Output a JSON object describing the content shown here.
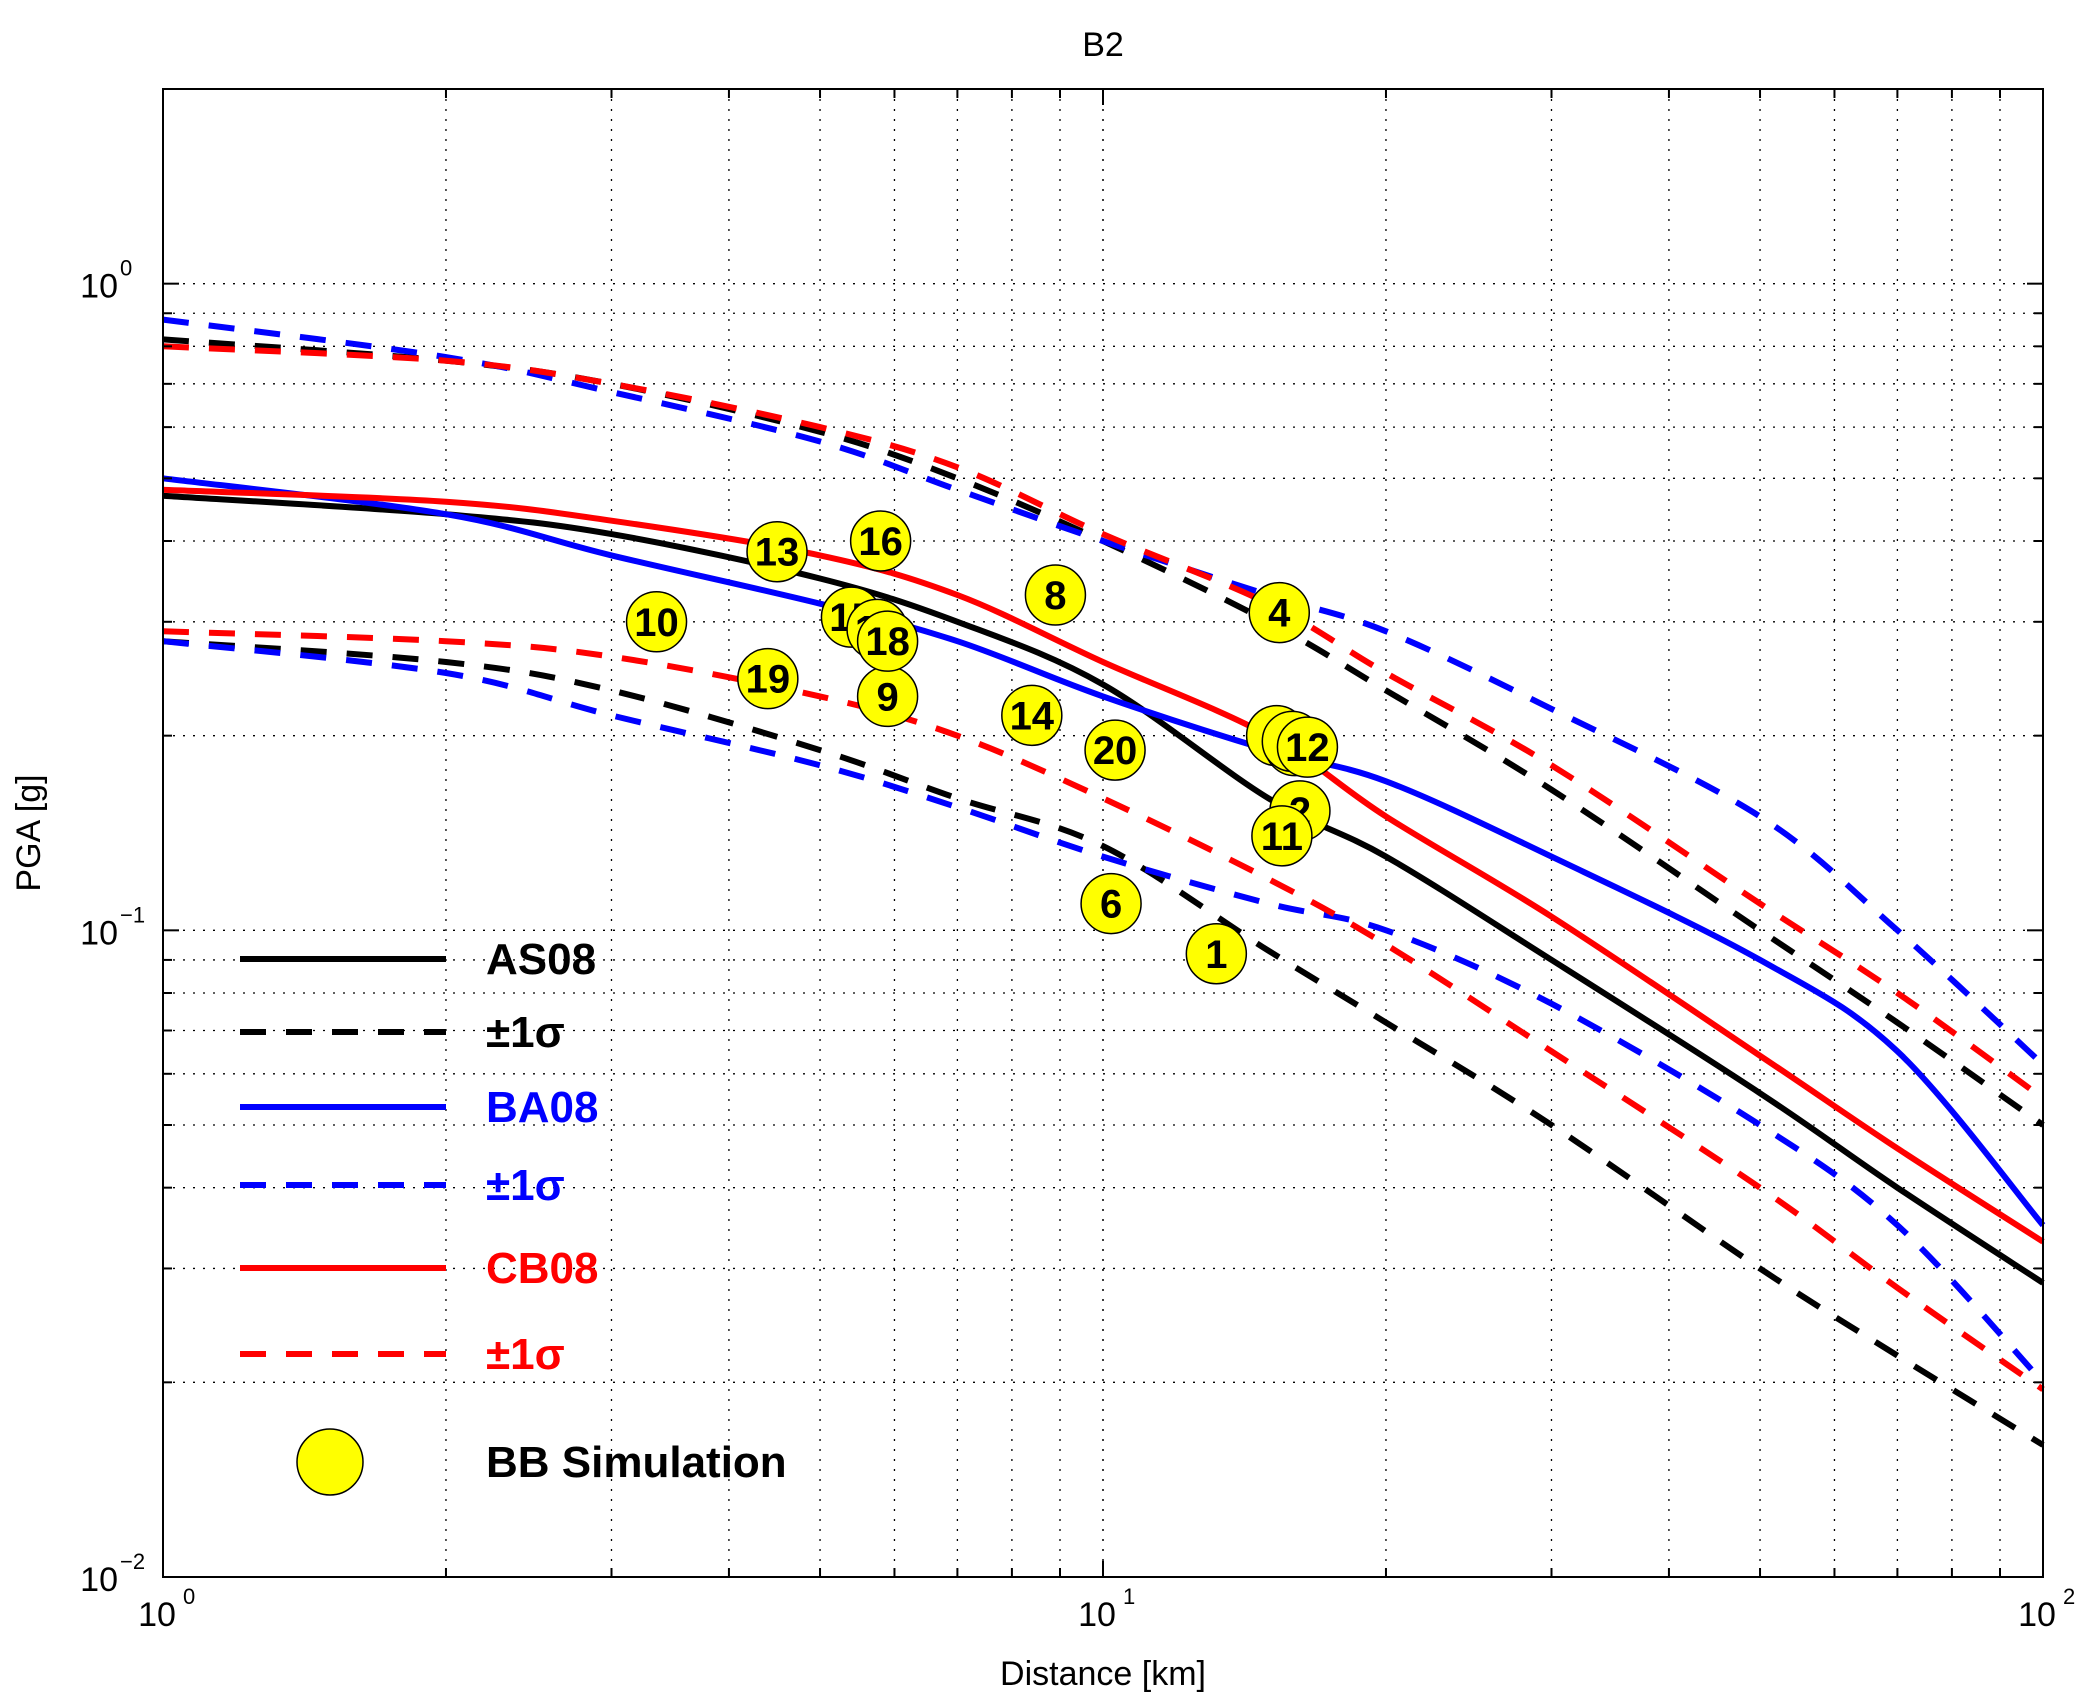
{
  "chart_data": {
    "type": "scatter",
    "title": "B2",
    "xlabel": "Distance [km]",
    "ylabel": "PGA [g]",
    "xscale": "log",
    "yscale": "log",
    "xlim": [
      1,
      100
    ],
    "ylim": [
      0.01,
      2.0
    ],
    "grid": true,
    "x_ticks": [
      {
        "base": "10",
        "exp": "0",
        "value": 1
      },
      {
        "base": "10",
        "exp": "1",
        "value": 10
      },
      {
        "base": "10",
        "exp": "2",
        "value": 100
      }
    ],
    "y_ticks": [
      {
        "base": "10",
        "exp": "−2",
        "value": 0.01
      },
      {
        "base": "10",
        "exp": "−1",
        "value": 0.1
      },
      {
        "base": "10",
        "exp": "0",
        "value": 1
      }
    ],
    "legend_placement": "bottom-left",
    "legend": [
      {
        "label": "AS08",
        "color": "#000000",
        "style": "solid"
      },
      {
        "label": "±1σ",
        "color": "#000000",
        "style": "dashed"
      },
      {
        "label": "BA08",
        "color": "#0000ff",
        "style": "solid"
      },
      {
        "label": "±1σ",
        "color": "#0000ff",
        "style": "dashed"
      },
      {
        "label": "CB08",
        "color": "#ff0000",
        "style": "solid"
      },
      {
        "label": "±1σ",
        "color": "#ff0000",
        "style": "dashed"
      },
      {
        "label": "BB Simulation",
        "color": "#ffff00",
        "style": "marker"
      }
    ],
    "curves": [
      {
        "id": "as08-upper",
        "color": "#000000",
        "style": "dashed",
        "x": [
          1,
          2,
          3,
          5,
          7,
          10,
          15,
          20,
          30,
          50,
          70,
          100
        ],
        "y": [
          0.82,
          0.76,
          0.7,
          0.59,
          0.5,
          0.4,
          0.3,
          0.235,
          0.165,
          0.1,
          0.072,
          0.05
        ]
      },
      {
        "id": "as08-median",
        "color": "#000000",
        "style": "solid",
        "x": [
          1,
          2,
          3,
          5,
          7,
          10,
          15,
          20,
          30,
          50,
          70,
          100
        ],
        "y": [
          0.47,
          0.44,
          0.41,
          0.35,
          0.3,
          0.24,
          0.16,
          0.13,
          0.09,
          0.056,
          0.04,
          0.0285
        ]
      },
      {
        "id": "as08-lower",
        "color": "#000000",
        "style": "dashed",
        "x": [
          1,
          2,
          3,
          5,
          7,
          10,
          15,
          20,
          30,
          50,
          70,
          100
        ],
        "y": [
          0.28,
          0.26,
          0.235,
          0.19,
          0.16,
          0.135,
          0.093,
          0.072,
          0.05,
          0.03,
          0.022,
          0.016
        ]
      },
      {
        "id": "ba08-upper",
        "color": "#0000ff",
        "style": "dashed",
        "x": [
          1,
          2,
          3,
          5,
          7,
          10,
          15,
          20,
          30,
          50,
          70,
          100
        ],
        "y": [
          0.88,
          0.77,
          0.68,
          0.57,
          0.48,
          0.4,
          0.33,
          0.29,
          0.22,
          0.15,
          0.1,
          0.062
        ]
      },
      {
        "id": "ba08-median",
        "color": "#0000ff",
        "style": "solid",
        "x": [
          1,
          2,
          3,
          5,
          7,
          10,
          15,
          20,
          30,
          50,
          70,
          100
        ],
        "y": [
          0.5,
          0.44,
          0.38,
          0.32,
          0.28,
          0.23,
          0.19,
          0.17,
          0.13,
          0.09,
          0.065,
          0.035
        ]
      },
      {
        "id": "ba08-lower",
        "color": "#0000ff",
        "style": "dashed",
        "x": [
          1,
          2,
          3,
          5,
          7,
          10,
          15,
          20,
          30,
          50,
          70,
          100
        ],
        "y": [
          0.28,
          0.25,
          0.215,
          0.18,
          0.155,
          0.13,
          0.11,
          0.1,
          0.077,
          0.05,
          0.035,
          0.02
        ]
      },
      {
        "id": "cb08-upper",
        "color": "#ff0000",
        "style": "dashed",
        "x": [
          1,
          2,
          3,
          5,
          7,
          10,
          15,
          20,
          30,
          50,
          70,
          100
        ],
        "y": [
          0.8,
          0.76,
          0.7,
          0.6,
          0.52,
          0.41,
          0.32,
          0.25,
          0.18,
          0.11,
          0.08,
          0.055
        ]
      },
      {
        "id": "cb08-median",
        "color": "#ff0000",
        "style": "solid",
        "x": [
          1,
          2,
          3,
          5,
          7,
          10,
          15,
          20,
          30,
          50,
          70,
          100
        ],
        "y": [
          0.48,
          0.46,
          0.43,
          0.38,
          0.33,
          0.26,
          0.2,
          0.15,
          0.105,
          0.064,
          0.046,
          0.033
        ]
      },
      {
        "id": "cb08-lower",
        "color": "#ff0000",
        "style": "dashed",
        "x": [
          1,
          2,
          3,
          5,
          7,
          10,
          15,
          20,
          30,
          50,
          70,
          100
        ],
        "y": [
          0.29,
          0.28,
          0.265,
          0.23,
          0.2,
          0.16,
          0.12,
          0.095,
          0.065,
          0.04,
          0.028,
          0.0195
        ]
      }
    ],
    "points": [
      {
        "label": "1",
        "x": 13.2,
        "y": 0.092
      },
      {
        "label": "2",
        "x": 16.2,
        "y": 0.153
      },
      {
        "label": "3",
        "x": 15.3,
        "y": 0.2
      },
      {
        "label": "4",
        "x": 15.4,
        "y": 0.31
      },
      {
        "label": "5",
        "x": 16.0,
        "y": 0.193
      },
      {
        "label": "6",
        "x": 10.2,
        "y": 0.11
      },
      {
        "label": "7",
        "x": 15.9,
        "y": 0.196
      },
      {
        "label": "8",
        "x": 8.9,
        "y": 0.33
      },
      {
        "label": "9",
        "x": 5.9,
        "y": 0.23
      },
      {
        "label": "10",
        "x": 3.35,
        "y": 0.3
      },
      {
        "label": "11",
        "x": 15.5,
        "y": 0.14
      },
      {
        "label": "12",
        "x": 16.5,
        "y": 0.192
      },
      {
        "label": "13",
        "x": 4.5,
        "y": 0.385
      },
      {
        "label": "14",
        "x": 8.4,
        "y": 0.215
      },
      {
        "label": "15",
        "x": 5.4,
        "y": 0.305
      },
      {
        "label": "16",
        "x": 5.8,
        "y": 0.4
      },
      {
        "label": "17",
        "x": 5.75,
        "y": 0.292
      },
      {
        "label": "18",
        "x": 5.9,
        "y": 0.28
      },
      {
        "label": "19",
        "x": 4.4,
        "y": 0.245
      },
      {
        "label": "20",
        "x": 10.3,
        "y": 0.19
      }
    ]
  }
}
